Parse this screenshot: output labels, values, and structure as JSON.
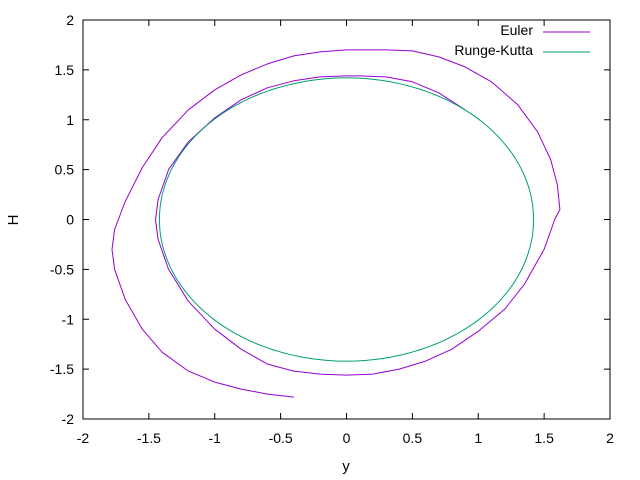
{
  "chart_data": {
    "type": "line",
    "title": "",
    "xlabel": "y",
    "ylabel": "H",
    "xlim": [
      -2,
      2
    ],
    "ylim": [
      -2,
      2
    ],
    "xticks": [
      "-2",
      "-1.5",
      "-1",
      "-0.5",
      "0",
      "0.5",
      "1",
      "1.5",
      "2"
    ],
    "yticks": [
      "2",
      "1.5",
      "1",
      "0.5",
      "0",
      "-0.5",
      "-1",
      "-1.5",
      "-2"
    ],
    "grid": false,
    "legend": "top-right",
    "series": [
      {
        "name": "Euler",
        "color": "#9400d3",
        "x": [
          0.9,
          0.7,
          0.5,
          0.3,
          0.1,
          0.0,
          -0.2,
          -0.4,
          -0.6,
          -0.8,
          -1.0,
          -1.2,
          -1.35,
          -1.43,
          -1.45,
          -1.43,
          -1.35,
          -1.2,
          -1.0,
          -0.8,
          -0.6,
          -0.4,
          -0.2,
          0.0,
          0.2,
          0.4,
          0.6,
          0.8,
          1.0,
          1.2,
          1.35,
          1.5,
          1.58,
          1.62,
          1.6,
          1.55,
          1.45,
          1.3,
          1.1,
          0.9,
          0.7,
          0.5,
          0.3,
          0.1,
          0.0,
          -0.2,
          -0.4,
          -0.6,
          -0.8,
          -1.0,
          -1.2,
          -1.4,
          -1.55,
          -1.68,
          -1.76,
          -1.78,
          -1.76,
          -1.68,
          -1.55,
          -1.4,
          -1.2,
          -1.0,
          -0.8,
          -0.6,
          -0.4
        ],
        "y": [
          1.1,
          1.27,
          1.38,
          1.43,
          1.44,
          1.44,
          1.43,
          1.39,
          1.32,
          1.2,
          1.02,
          0.78,
          0.5,
          0.2,
          0.0,
          -0.2,
          -0.5,
          -0.82,
          -1.1,
          -1.3,
          -1.45,
          -1.52,
          -1.55,
          -1.56,
          -1.55,
          -1.5,
          -1.42,
          -1.3,
          -1.12,
          -0.9,
          -0.65,
          -0.3,
          0.0,
          0.1,
          0.35,
          0.6,
          0.88,
          1.15,
          1.38,
          1.53,
          1.63,
          1.69,
          1.7,
          1.7,
          1.7,
          1.68,
          1.64,
          1.56,
          1.45,
          1.3,
          1.1,
          0.82,
          0.52,
          0.18,
          -0.1,
          -0.3,
          -0.5,
          -0.8,
          -1.1,
          -1.33,
          -1.52,
          -1.63,
          -1.7,
          -1.75,
          -1.78
        ]
      },
      {
        "name": "Runge-Kutta",
        "color": "#009e73",
        "cx": 0.0,
        "cy": 0.0,
        "rx": 1.42,
        "ry": 1.42
      }
    ]
  }
}
